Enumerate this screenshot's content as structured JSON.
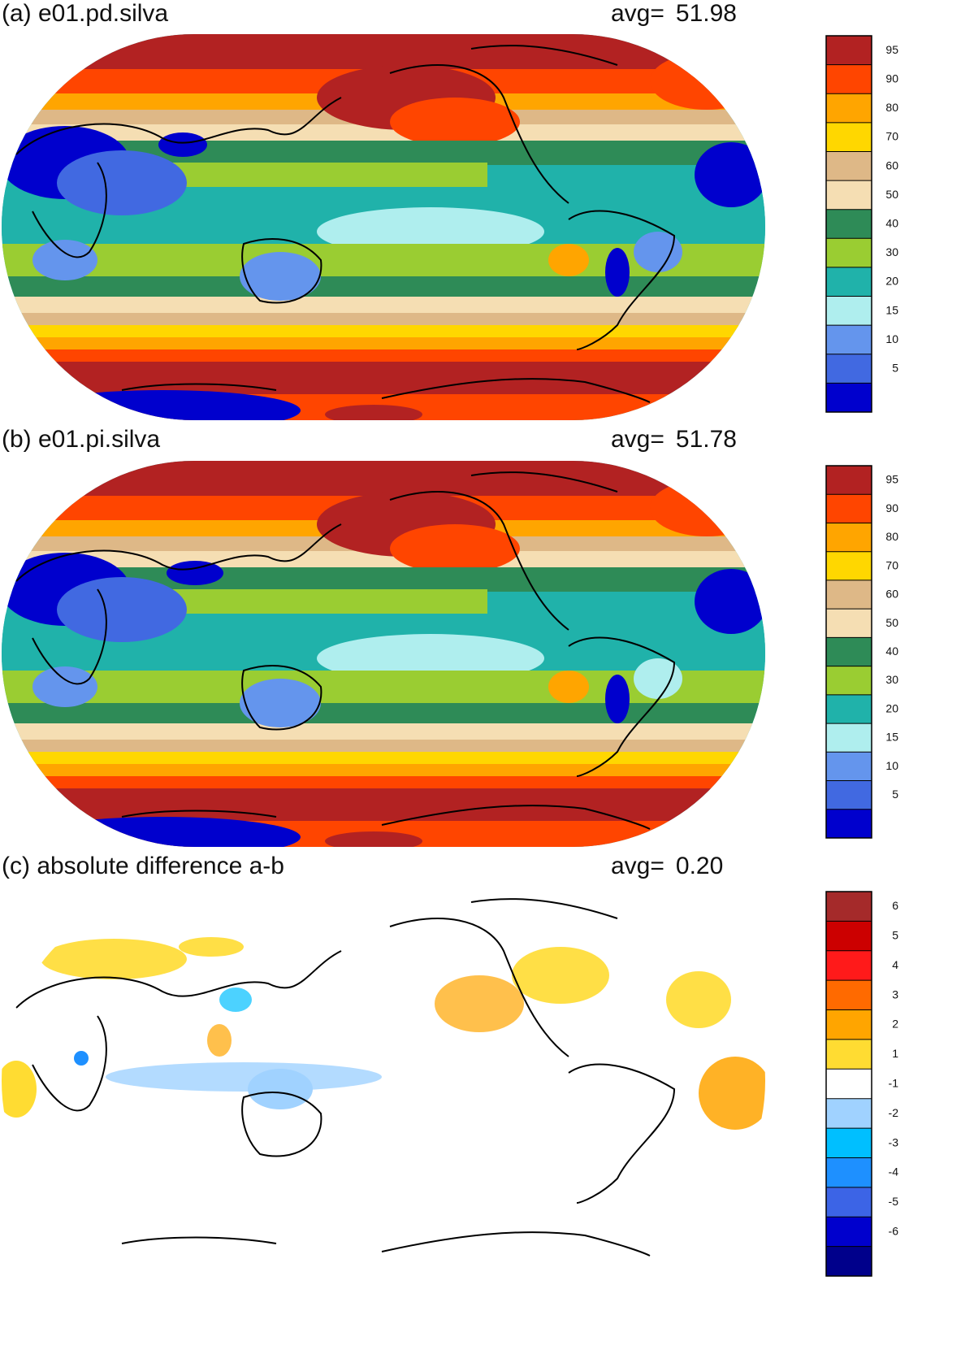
{
  "panels": [
    {
      "id": "a",
      "title": "(a) e01.pd.silva",
      "avg_label": "avg=",
      "avg_value": "51.98",
      "colorbar": {
        "labels": [
          "95",
          "90",
          "80",
          "70",
          "60",
          "50",
          "40",
          "30",
          "20",
          "15",
          "10",
          "5"
        ],
        "colors": [
          "#b22222",
          "#ff4500",
          "#ffa500",
          "#ffd700",
          "#deb887",
          "#f5deb3",
          "#2e8b57",
          "#9acd32",
          "#20b2aa",
          "#afeeee",
          "#6495ed",
          "#4169e1",
          "#0000cd"
        ]
      }
    },
    {
      "id": "b",
      "title": "(b) e01.pi.silva",
      "avg_label": "avg=",
      "avg_value": "51.78",
      "colorbar": {
        "labels": [
          "95",
          "90",
          "80",
          "70",
          "60",
          "50",
          "40",
          "30",
          "20",
          "15",
          "10",
          "5"
        ],
        "colors": [
          "#b22222",
          "#ff4500",
          "#ffa500",
          "#ffd700",
          "#deb887",
          "#f5deb3",
          "#2e8b57",
          "#9acd32",
          "#20b2aa",
          "#afeeee",
          "#6495ed",
          "#4169e1",
          "#0000cd"
        ]
      }
    },
    {
      "id": "c",
      "title": "(c) absolute difference a-b",
      "avg_label": "avg=",
      "avg_value": "0.20",
      "colorbar": {
        "labels": [
          "6",
          "5",
          "4",
          "3",
          "2",
          "1",
          "-1",
          "-2",
          "-3",
          "-4",
          "-5",
          "-6"
        ],
        "colors": [
          "#a52a2a",
          "#cc0000",
          "#ff1a1a",
          "#ff6a00",
          "#ffa500",
          "#ffdc32",
          "#ffffff",
          "#a0d2ff",
          "#00bfff",
          "#1e90ff",
          "#3c64e6",
          "#0000cd",
          "#00008b"
        ]
      }
    }
  ]
}
